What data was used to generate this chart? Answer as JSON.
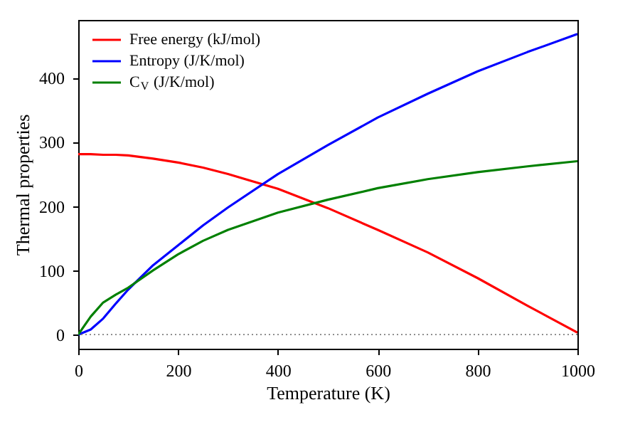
{
  "chart_data": {
    "type": "line",
    "xlabel": "Temperature (K)",
    "ylabel": "Thermal properties",
    "x": [
      0,
      25,
      50,
      75,
      100,
      150,
      200,
      250,
      300,
      400,
      500,
      600,
      700,
      800,
      900,
      1000
    ],
    "series": [
      {
        "name": "Free energy (kJ/mol)",
        "color": "#ff0000",
        "values": [
          281,
          281,
          280,
          280,
          279,
          274,
          268,
          260,
          250,
          227,
          197,
          163,
          128,
          88,
          45,
          3
        ]
      },
      {
        "name": "Entropy (J/K/mol)",
        "color": "#0000ff",
        "values": [
          0,
          8,
          25,
          48,
          70,
          108,
          139,
          170,
          198,
          250,
          295,
          338,
          375,
          410,
          440,
          468
        ]
      },
      {
        "name": "C$_{V}$ (J/K/mol)",
        "color": "#008000",
        "values": [
          0,
          28,
          50,
          62,
          73,
          100,
          125,
          146,
          163,
          190,
          210,
          228,
          242,
          253,
          262,
          270
        ]
      }
    ],
    "xlim": [
      0,
      1000
    ],
    "xticks": [
      0,
      200,
      400,
      600,
      800,
      {
        "value": 1000,
        "label": "1000"
      }
    ],
    "ylim": [
      -22,
      490
    ],
    "yticks": [
      0,
      100,
      200,
      300,
      400
    ],
    "ref_lines": [
      {
        "axis": "y",
        "value": 0,
        "color": "#808080",
        "line_style": "dotted"
      }
    ],
    "legend": "top left",
    "grid": false,
    "line_style": "solid"
  }
}
